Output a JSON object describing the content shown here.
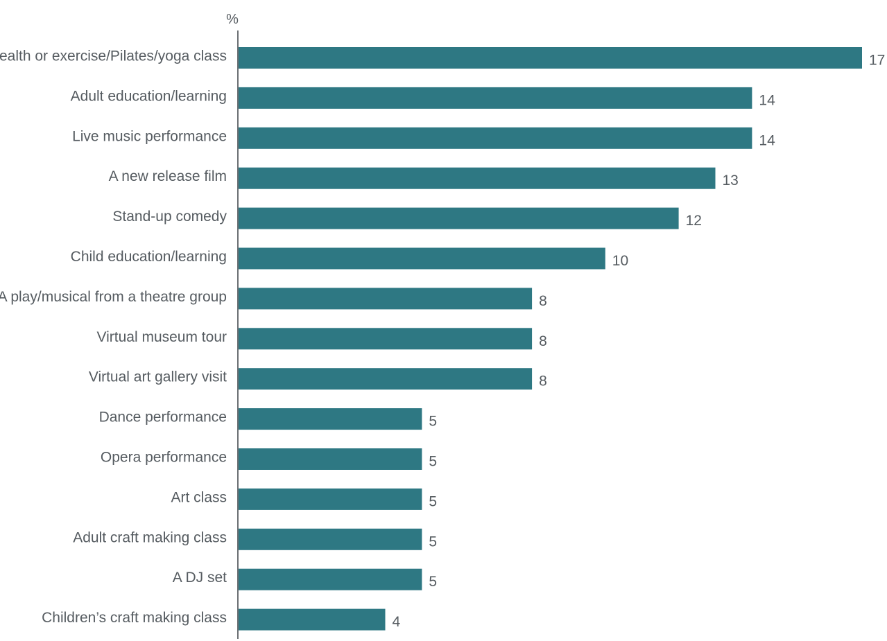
{
  "chart_data": {
    "type": "bar",
    "orientation": "horizontal",
    "unit_label": "%",
    "categories": [
      "Health or exercise/Pilates/yoga class",
      "Adult education/learning",
      "Live music performance",
      "A new release film",
      "Stand-up comedy",
      "Child education/learning",
      "A play/musical from a theatre group",
      "Virtual museum tour",
      "Virtual art gallery visit",
      "Dance performance",
      "Opera performance",
      "Art class",
      "Adult craft making class",
      "A DJ set",
      "Children’s craft making class"
    ],
    "values": [
      17,
      14,
      14,
      13,
      12,
      10,
      8,
      8,
      8,
      5,
      5,
      5,
      5,
      5,
      4
    ],
    "value_labels": [
      "17",
      "14",
      "14",
      "13",
      "12",
      "10",
      "8",
      "8",
      "8",
      "5",
      "5",
      "5",
      "5",
      "5",
      "4"
    ],
    "xlim": [
      0,
      17
    ],
    "grid": false,
    "legend": "none",
    "bar_color": "#2e7883",
    "axis_color": "#6b6f73",
    "text_color": "#555b60"
  }
}
